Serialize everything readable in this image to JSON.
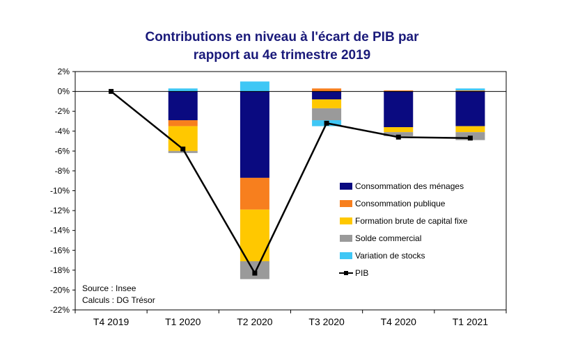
{
  "chart_data": {
    "type": "bar",
    "stacked": true,
    "title_line1": "Contributions en niveau à l'écart de PIB par",
    "title_line2": "rapport au 4e trimestre 2019",
    "categories": [
      "T4 2019",
      "T1 2020",
      "T2 2020",
      "T3 2020",
      "T4 2020",
      "T1 2021"
    ],
    "ylim": [
      -22,
      2
    ],
    "yticks": [
      2,
      0,
      -2,
      -4,
      -6,
      -8,
      -10,
      -12,
      -14,
      -16,
      -18,
      -20,
      -22
    ],
    "ytick_labels": [
      "2%",
      "0%",
      "-2%",
      "-4%",
      "-6%",
      "-8%",
      "-10%",
      "-12%",
      "-14%",
      "-16%",
      "-18%",
      "-20%",
      "-22%"
    ],
    "series": [
      {
        "name": "Consommation des ménages",
        "color": "#0a0a80",
        "values": [
          0,
          -2.9,
          -8.7,
          -0.8,
          -3.6,
          -3.5
        ]
      },
      {
        "name": "Consommation publique",
        "color": "#f77f1e",
        "values": [
          0,
          -0.6,
          -3.2,
          0.3,
          0.1,
          0.1
        ]
      },
      {
        "name": "Formation brute de capital fixe",
        "color": "#ffc800",
        "values": [
          0,
          -2.5,
          -5.2,
          -0.9,
          -0.5,
          -0.6
        ]
      },
      {
        "name": "Solde commercial",
        "color": "#9a9a9a",
        "values": [
          0,
          -0.2,
          -1.8,
          -1.2,
          -0.4,
          -0.8
        ]
      },
      {
        "name": "Variation de stocks",
        "color": "#3fc7f5",
        "values": [
          0,
          0.3,
          1.0,
          -0.6,
          0.0,
          0.2
        ]
      }
    ],
    "line": {
      "name": "PIB",
      "color": "#000000",
      "values": [
        0,
        -5.8,
        -18.3,
        -3.2,
        -4.6,
        -4.7
      ]
    },
    "legend_position": "bottom-right",
    "source_line1": "Source : Insee",
    "source_line2": "Calculs : DG Trésor"
  }
}
